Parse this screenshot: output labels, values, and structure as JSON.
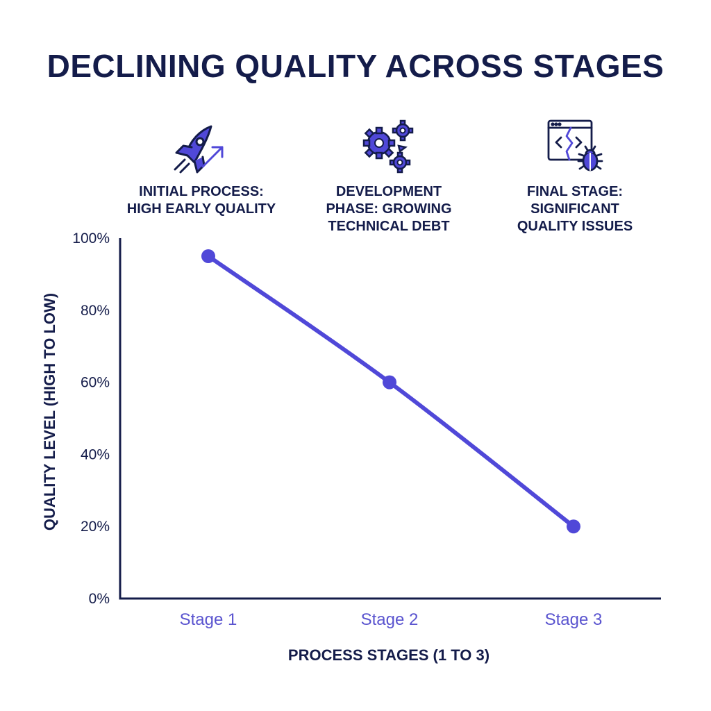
{
  "colors": {
    "navy": "#141c4a",
    "accent": "#5048d8",
    "tick_x": "#5a54cf",
    "background": "#ffffff"
  },
  "stages": [
    {
      "icon": "rocket-icon",
      "caption_lines": [
        "INITIAL PROCESS:",
        "HIGH EARLY QUALITY"
      ]
    },
    {
      "icon": "gears-icon",
      "caption_lines": [
        "DEVELOPMENT",
        "PHASE: GROWING",
        "TECHNICAL DEBT"
      ]
    },
    {
      "icon": "code-window-bug-icon",
      "caption_lines": [
        "FINAL STAGE:",
        "SIGNIFICANT",
        "QUALITY ISSUES"
      ]
    }
  ],
  "chart_data": {
    "type": "line",
    "title": "DECLINING QUALITY ACROSS STAGES",
    "xlabel": "PROCESS STAGES (1 TO 3)",
    "ylabel": "QUALITY LEVEL (HIGH TO LOW)",
    "categories": [
      "Stage 1",
      "Stage 2",
      "Stage 3"
    ],
    "values": [
      95,
      60,
      20
    ],
    "ylim": [
      0,
      100
    ],
    "yticks": [
      "0%",
      "20%",
      "40%",
      "60%",
      "80%",
      "100%"
    ],
    "ytick_values": [
      0,
      20,
      40,
      60,
      80,
      100
    ],
    "grid": false,
    "legend": "none",
    "smooth": true
  }
}
